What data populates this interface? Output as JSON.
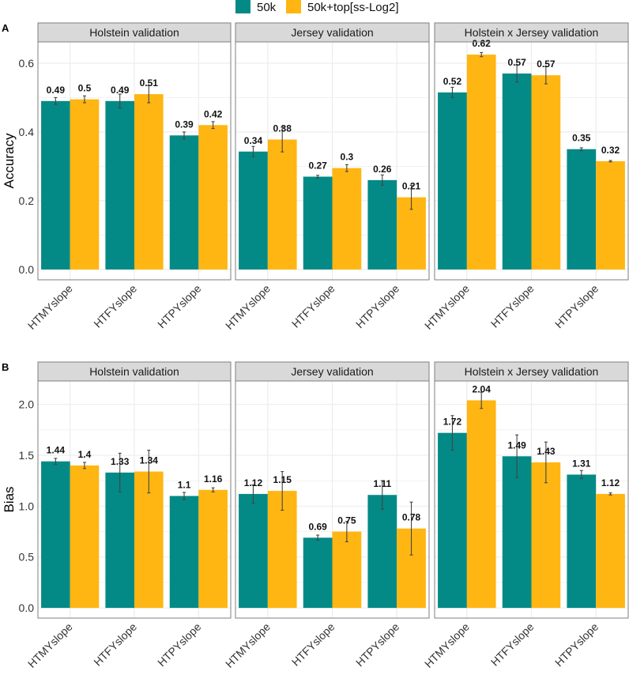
{
  "chart_data": [
    {
      "type": "bar",
      "panel_tag": "A",
      "ylabel": "Accuracy",
      "ylim": [
        -0.03,
        0.662
      ],
      "yticks": [
        "0.0",
        "0.2",
        "0.4",
        "0.6"
      ],
      "ytick_values": [
        0,
        0.2,
        0.4,
        0.6
      ],
      "categories": [
        "HTMYslope",
        "HTFYslope",
        "HTPYslope"
      ],
      "facets": [
        {
          "title": "Holstein validation",
          "series": [
            {
              "name": "50k",
              "values": [
                0.49,
                0.49,
                0.39
              ],
              "labels": [
                "0.49",
                "0.49",
                "0.39"
              ],
              "err": [
                0.01,
                0.02,
                0.01
              ]
            },
            {
              "name": "50k+top[ss-Log2]",
              "values": [
                0.495,
                0.51,
                0.42
              ],
              "labels": [
                "0.5",
                "0.51",
                "0.42"
              ],
              "err": [
                0.01,
                0.025,
                0.01
              ]
            }
          ]
        },
        {
          "title": "Jersey validation",
          "series": [
            {
              "name": "50k",
              "values": [
                0.343,
                0.27,
                0.26
              ],
              "labels": [
                "0.34",
                "0.27",
                "0.26"
              ],
              "err": [
                0.015,
                0.004,
                0.015
              ]
            },
            {
              "name": "50k+top[ss-Log2]",
              "values": [
                0.378,
                0.295,
                0.21
              ],
              "labels": [
                "0.38",
                "0.3",
                "0.21"
              ],
              "err": [
                0.036,
                0.01,
                0.035
              ]
            }
          ]
        },
        {
          "title": "Holstein x Jersey validation",
          "series": [
            {
              "name": "50k",
              "values": [
                0.515,
                0.57,
                0.35
              ],
              "labels": [
                "0.52",
                "0.57",
                "0.35"
              ],
              "err": [
                0.015,
                0.025,
                0.004
              ]
            },
            {
              "name": "50k+top[ss-Log2]",
              "values": [
                0.625,
                0.565,
                0.315
              ],
              "labels": [
                "0.62",
                "0.57",
                "0.32"
              ],
              "err": [
                0.006,
                0.025,
                0.002
              ]
            }
          ]
        }
      ]
    },
    {
      "type": "bar",
      "panel_tag": "B",
      "ylabel": "Bias",
      "ylim": [
        -0.1,
        2.23
      ],
      "yticks": [
        "0.0",
        "0.5",
        "1.0",
        "1.5",
        "2.0"
      ],
      "ytick_values": [
        0,
        0.5,
        1.0,
        1.5,
        2.0
      ],
      "categories": [
        "HTMYslope",
        "HTFYslope",
        "HTPYslope"
      ],
      "facets": [
        {
          "title": "Holstein validation",
          "series": [
            {
              "name": "50k",
              "values": [
                1.44,
                1.33,
                1.1
              ],
              "labels": [
                "1.44",
                "1.33",
                "1.1"
              ],
              "err": [
                0.03,
                0.19,
                0.035
              ]
            },
            {
              "name": "50k+top[ss-Log2]",
              "values": [
                1.4,
                1.34,
                1.16
              ],
              "labels": [
                "1.4",
                "1.34",
                "1.16"
              ],
              "err": [
                0.03,
                0.21,
                0.02
              ]
            }
          ]
        },
        {
          "title": "Jersey validation",
          "series": [
            {
              "name": "50k",
              "values": [
                1.12,
                0.69,
                1.11
              ],
              "labels": [
                "1.12",
                "0.69",
                "1.11"
              ],
              "err": [
                0.09,
                0.025,
                0.14
              ]
            },
            {
              "name": "50k+top[ss-Log2]",
              "values": [
                1.15,
                0.75,
                0.78
              ],
              "labels": [
                "1.15",
                "0.75",
                "0.78"
              ],
              "err": [
                0.19,
                0.1,
                0.26
              ]
            }
          ]
        },
        {
          "title": "Holstein x Jersey validation",
          "series": [
            {
              "name": "50k",
              "values": [
                1.72,
                1.49,
                1.31
              ],
              "labels": [
                "1.72",
                "1.49",
                "1.31"
              ],
              "err": [
                0.17,
                0.21,
                0.04
              ]
            },
            {
              "name": "50k+top[ss-Log2]",
              "values": [
                2.04,
                1.43,
                1.12
              ],
              "labels": [
                "2.04",
                "1.43",
                "1.12"
              ],
              "err": [
                0.08,
                0.2,
                0.01
              ]
            }
          ]
        }
      ]
    }
  ],
  "legend": {
    "items": [
      {
        "name": "50k",
        "color": "#038A86"
      },
      {
        "name": "50k+top[ss-Log2]",
        "color": "#FFB612"
      }
    ]
  }
}
